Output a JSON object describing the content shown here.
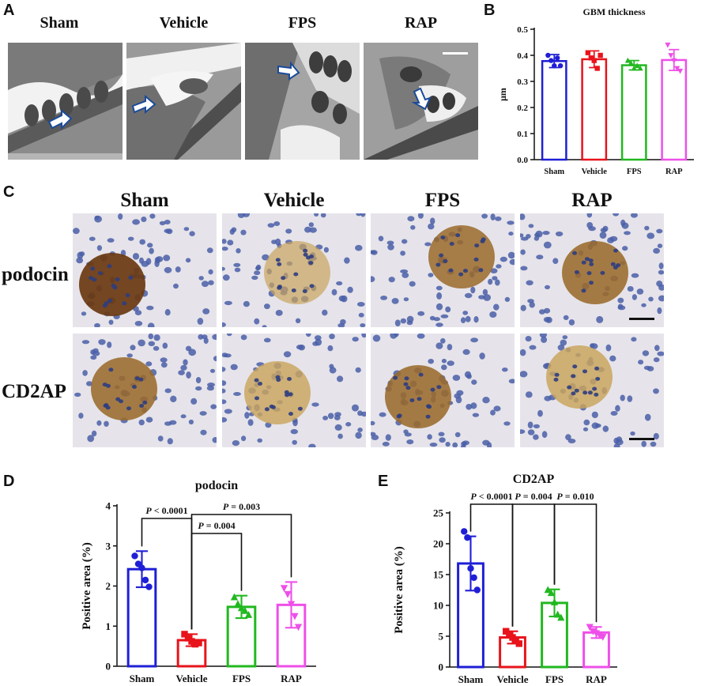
{
  "panel_letters": {
    "a": "A",
    "b": "B",
    "c": "C",
    "d": "D",
    "e": "E"
  },
  "groups": [
    "Sham",
    "Vehicle",
    "FPS",
    "RAP"
  ],
  "stains": [
    "podocin",
    "CD2AP"
  ],
  "colors": {
    "Sham": "#1f1fd6",
    "Vehicle": "#e8131b",
    "FPS": "#21b81f",
    "RAP": "#ee4fe9"
  },
  "chart_data": [
    {
      "id": "B",
      "type": "bar",
      "title": "GBM thickness",
      "ylabel": "μm",
      "xlabel": "",
      "categories": [
        "Sham",
        "Vehicle",
        "FPS",
        "RAP"
      ],
      "values": [
        0.378,
        0.385,
        0.362,
        0.382
      ],
      "errors": [
        0.025,
        0.032,
        0.018,
        0.04
      ],
      "points": [
        [
          0.4,
          0.38,
          0.36,
          0.39,
          0.36
        ],
        [
          0.41,
          0.39,
          0.38,
          0.35,
          0.4
        ],
        [
          0.38,
          0.37,
          0.35,
          0.36,
          0.35
        ],
        [
          0.44,
          0.4,
          0.38,
          0.35,
          0.34
        ]
      ],
      "ylim": [
        0,
        0.5
      ],
      "yticks": [
        0.0,
        0.1,
        0.2,
        0.3,
        0.4,
        0.5
      ],
      "ytick_labels": [
        "0.0",
        "0.1",
        "0.2",
        "0.3",
        "0.4",
        "0.5"
      ],
      "grid": false
    },
    {
      "id": "D",
      "type": "bar",
      "title": "podocin",
      "ylabel": "Positive area (%)",
      "xlabel": "",
      "categories": [
        "Sham",
        "Vehicle",
        "FPS",
        "RAP"
      ],
      "values": [
        2.42,
        0.65,
        1.48,
        1.53
      ],
      "errors": [
        0.45,
        0.15,
        0.28,
        0.57
      ],
      "points": [
        [
          2.75,
          2.55,
          2.45,
          2.15,
          1.98
        ],
        [
          0.8,
          0.7,
          0.62,
          0.55,
          0.58
        ],
        [
          1.72,
          1.55,
          1.45,
          1.38,
          1.28
        ],
        [
          1.95,
          1.8,
          1.55,
          1.25,
          0.98
        ]
      ],
      "ylim": [
        0,
        4
      ],
      "yticks": [
        0,
        1,
        2,
        3,
        4
      ],
      "ytick_labels": [
        "0",
        "1",
        "2",
        "3",
        "4"
      ],
      "annotations": [
        {
          "from": 0,
          "to": 1,
          "italic": "P",
          "text": " < 0.0001"
        },
        {
          "from": 1,
          "to": 2,
          "italic": "P",
          "text": " = 0.004"
        },
        {
          "from": 1,
          "to": 3,
          "italic": "P",
          "text": " = 0.003"
        }
      ],
      "grid": false
    },
    {
      "id": "E",
      "type": "bar",
      "title": "CD2AP",
      "ylabel": "Positive area (%)",
      "xlabel": "",
      "categories": [
        "Sham",
        "Vehicle",
        "FPS",
        "RAP"
      ],
      "values": [
        16.8,
        4.8,
        10.4,
        5.6
      ],
      "errors": [
        4.4,
        1.0,
        2.2,
        0.9
      ],
      "points": [
        [
          22.0,
          21.0,
          16.0,
          14.5,
          12.5
        ],
        [
          5.8,
          5.2,
          4.8,
          4.3,
          3.8
        ],
        [
          12.5,
          12.0,
          10.5,
          8.5,
          8.0
        ],
        [
          6.5,
          5.8,
          5.5,
          5.2,
          4.9
        ]
      ],
      "ylim": [
        0,
        25
      ],
      "yticks": [
        0,
        5,
        10,
        15,
        20,
        25
      ],
      "ytick_labels": [
        "0",
        "5",
        "10",
        "15",
        "20",
        "25"
      ],
      "annotations": [
        {
          "from": 0,
          "to": 1,
          "italic": "P",
          "text": " < 0.0001"
        },
        {
          "from": 1,
          "to": 2,
          "italic": "P",
          "text": " = 0.004"
        },
        {
          "from": 2,
          "to": 3,
          "italic": "P",
          "text": " = 0.010"
        }
      ],
      "grid": false
    }
  ]
}
